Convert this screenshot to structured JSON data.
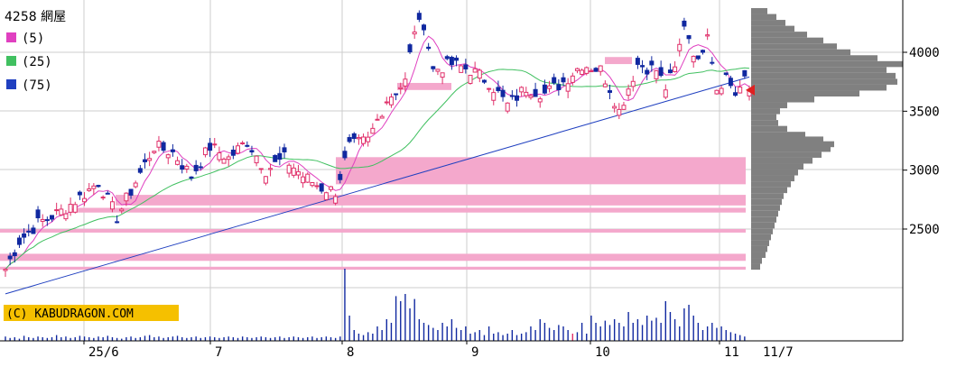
{
  "chart_data": {
    "type": "candlestick",
    "title": "4258 網屋",
    "copyright": "(C) KABUDRAGON.COM",
    "ylim": [
      2000,
      4400
    ],
    "y_ticks": [
      "2500",
      "3000",
      "3500",
      "4000"
    ],
    "x_ticks": [
      "25/6",
      "7",
      "8",
      "9",
      "10",
      "11",
      "11/7"
    ],
    "legend": [
      {
        "label": "(5)",
        "color": "#e040c0"
      },
      {
        "label": "(25)",
        "color": "#40c060"
      },
      {
        "label": "(75)",
        "color": "#2040c0"
      }
    ],
    "colors": {
      "up": "#e0306a",
      "down": "#1028a0",
      "ma5": "#e040c0",
      "ma25": "#40c060",
      "ma75": "#2040c0",
      "band": "#f4a8cc",
      "profile": "#808080",
      "grid": "#cccccc",
      "last_marker": "#e02020"
    },
    "last_price": 3680,
    "anchor_points": [
      [
        0,
        2160
      ],
      [
        3,
        2400
      ],
      [
        7,
        2550
      ],
      [
        12,
        2650
      ],
      [
        17,
        2800
      ],
      [
        20,
        2900
      ],
      [
        24,
        2600
      ],
      [
        28,
        2900
      ],
      [
        32,
        3200
      ],
      [
        36,
        3150
      ],
      [
        40,
        2950
      ],
      [
        44,
        3200
      ],
      [
        48,
        3100
      ],
      [
        52,
        3250
      ],
      [
        56,
        3000
      ],
      [
        60,
        3100
      ],
      [
        64,
        2950
      ],
      [
        68,
        2850
      ],
      [
        71,
        2820
      ],
      [
        74,
        3200
      ],
      [
        78,
        3250
      ],
      [
        82,
        3600
      ],
      [
        86,
        3750
      ],
      [
        88,
        4200
      ],
      [
        90,
        4250
      ],
      [
        92,
        3850
      ],
      [
        96,
        3900
      ],
      [
        100,
        3850
      ],
      [
        104,
        3750
      ],
      [
        108,
        3550
      ],
      [
        112,
        3700
      ],
      [
        116,
        3650
      ],
      [
        120,
        3750
      ],
      [
        124,
        3900
      ],
      [
        128,
        3850
      ],
      [
        130,
        3700
      ],
      [
        132,
        3500
      ],
      [
        136,
        3900
      ],
      [
        140,
        3850
      ],
      [
        142,
        3700
      ],
      [
        144,
        3850
      ],
      [
        146,
        4250
      ],
      [
        149,
        3900
      ],
      [
        151,
        4200
      ],
      [
        153,
        3700
      ],
      [
        155,
        3800
      ],
      [
        157,
        3650
      ],
      [
        159,
        3750
      ],
      [
        160,
        3680
      ]
    ],
    "volume_heights": [
      0.06,
      0.04,
      0.05,
      0.03,
      0.07,
      0.05,
      0.04,
      0.06,
      0.05,
      0.04,
      0.05,
      0.08,
      0.05,
      0.06,
      0.04,
      0.05,
      0.07,
      0.06,
      0.05,
      0.04,
      0.06,
      0.05,
      0.07,
      0.05,
      0.04,
      0.03,
      0.05,
      0.06,
      0.04,
      0.05,
      0.07,
      0.08,
      0.05,
      0.06,
      0.04,
      0.05,
      0.06,
      0.07,
      0.05,
      0.04,
      0.05,
      0.06,
      0.04,
      0.05,
      0.06,
      0.05,
      0.04,
      0.05,
      0.06,
      0.05,
      0.04,
      0.06,
      0.05,
      0.04,
      0.05,
      0.06,
      0.05,
      0.04,
      0.05,
      0.06,
      0.04,
      0.05,
      0.06,
      0.05,
      0.04,
      0.05,
      0.06,
      0.04,
      0.05,
      0.06,
      0.05,
      0.04,
      0.06,
      1.0,
      0.35,
      0.15,
      0.1,
      0.08,
      0.12,
      0.1,
      0.2,
      0.15,
      0.3,
      0.25,
      0.62,
      0.55,
      0.65,
      0.45,
      0.58,
      0.3,
      0.25,
      0.22,
      0.18,
      0.15,
      0.25,
      0.2,
      0.3,
      0.18,
      0.15,
      0.2,
      0.1,
      0.12,
      0.15,
      0.08,
      0.2,
      0.1,
      0.12,
      0.08,
      0.1,
      0.15,
      0.08,
      0.1,
      0.12,
      0.2,
      0.15,
      0.3,
      0.25,
      0.18,
      0.15,
      0.22,
      0.2,
      0.15,
      0.1,
      0.12,
      0.25,
      0.1,
      0.35,
      0.25,
      0.2,
      0.28,
      0.22,
      0.3,
      0.25,
      0.2,
      0.4,
      0.25,
      0.3,
      0.22,
      0.35,
      0.28,
      0.32,
      0.25,
      0.55,
      0.4,
      0.3,
      0.2,
      0.45,
      0.5,
      0.35,
      0.25,
      0.15,
      0.2,
      0.25,
      0.18,
      0.2,
      0.15,
      0.12,
      0.1,
      0.08,
      0.06
    ],
    "bands": [
      {
        "from": 2155,
        "to": 2180
      },
      {
        "from": 2230,
        "to": 2290
      },
      {
        "from": 2470,
        "to": 2500
      },
      {
        "from": 2640,
        "to": 2680
      },
      {
        "from": 2700,
        "to": 2790
      },
      {
        "from": 2880,
        "to": 3110
      },
      {
        "from": 3680,
        "to": 3740
      },
      {
        "from": 3900,
        "to": 3960
      }
    ],
    "profile": [
      [
        2180,
        10
      ],
      [
        2230,
        12
      ],
      [
        2280,
        16
      ],
      [
        2330,
        18
      ],
      [
        2380,
        20
      ],
      [
        2430,
        22
      ],
      [
        2480,
        24
      ],
      [
        2530,
        26
      ],
      [
        2580,
        28
      ],
      [
        2630,
        30
      ],
      [
        2680,
        32
      ],
      [
        2730,
        34
      ],
      [
        2780,
        36
      ],
      [
        2830,
        40
      ],
      [
        2880,
        44
      ],
      [
        2930,
        48
      ],
      [
        2980,
        52
      ],
      [
        3030,
        58
      ],
      [
        3080,
        68
      ],
      [
        3130,
        78
      ],
      [
        3180,
        88
      ],
      [
        3220,
        92
      ],
      [
        3260,
        80
      ],
      [
        3300,
        60
      ],
      [
        3350,
        40
      ],
      [
        3400,
        30
      ],
      [
        3450,
        28
      ],
      [
        3500,
        32
      ],
      [
        3550,
        40
      ],
      [
        3600,
        70
      ],
      [
        3650,
        120
      ],
      [
        3700,
        150
      ],
      [
        3750,
        162
      ],
      [
        3800,
        160
      ],
      [
        3850,
        150
      ],
      [
        3900,
        168
      ],
      [
        3950,
        140
      ],
      [
        4000,
        110
      ],
      [
        4050,
        95
      ],
      [
        4100,
        80
      ],
      [
        4150,
        62
      ],
      [
        4200,
        48
      ],
      [
        4250,
        38
      ],
      [
        4300,
        28
      ],
      [
        4350,
        18
      ]
    ]
  }
}
